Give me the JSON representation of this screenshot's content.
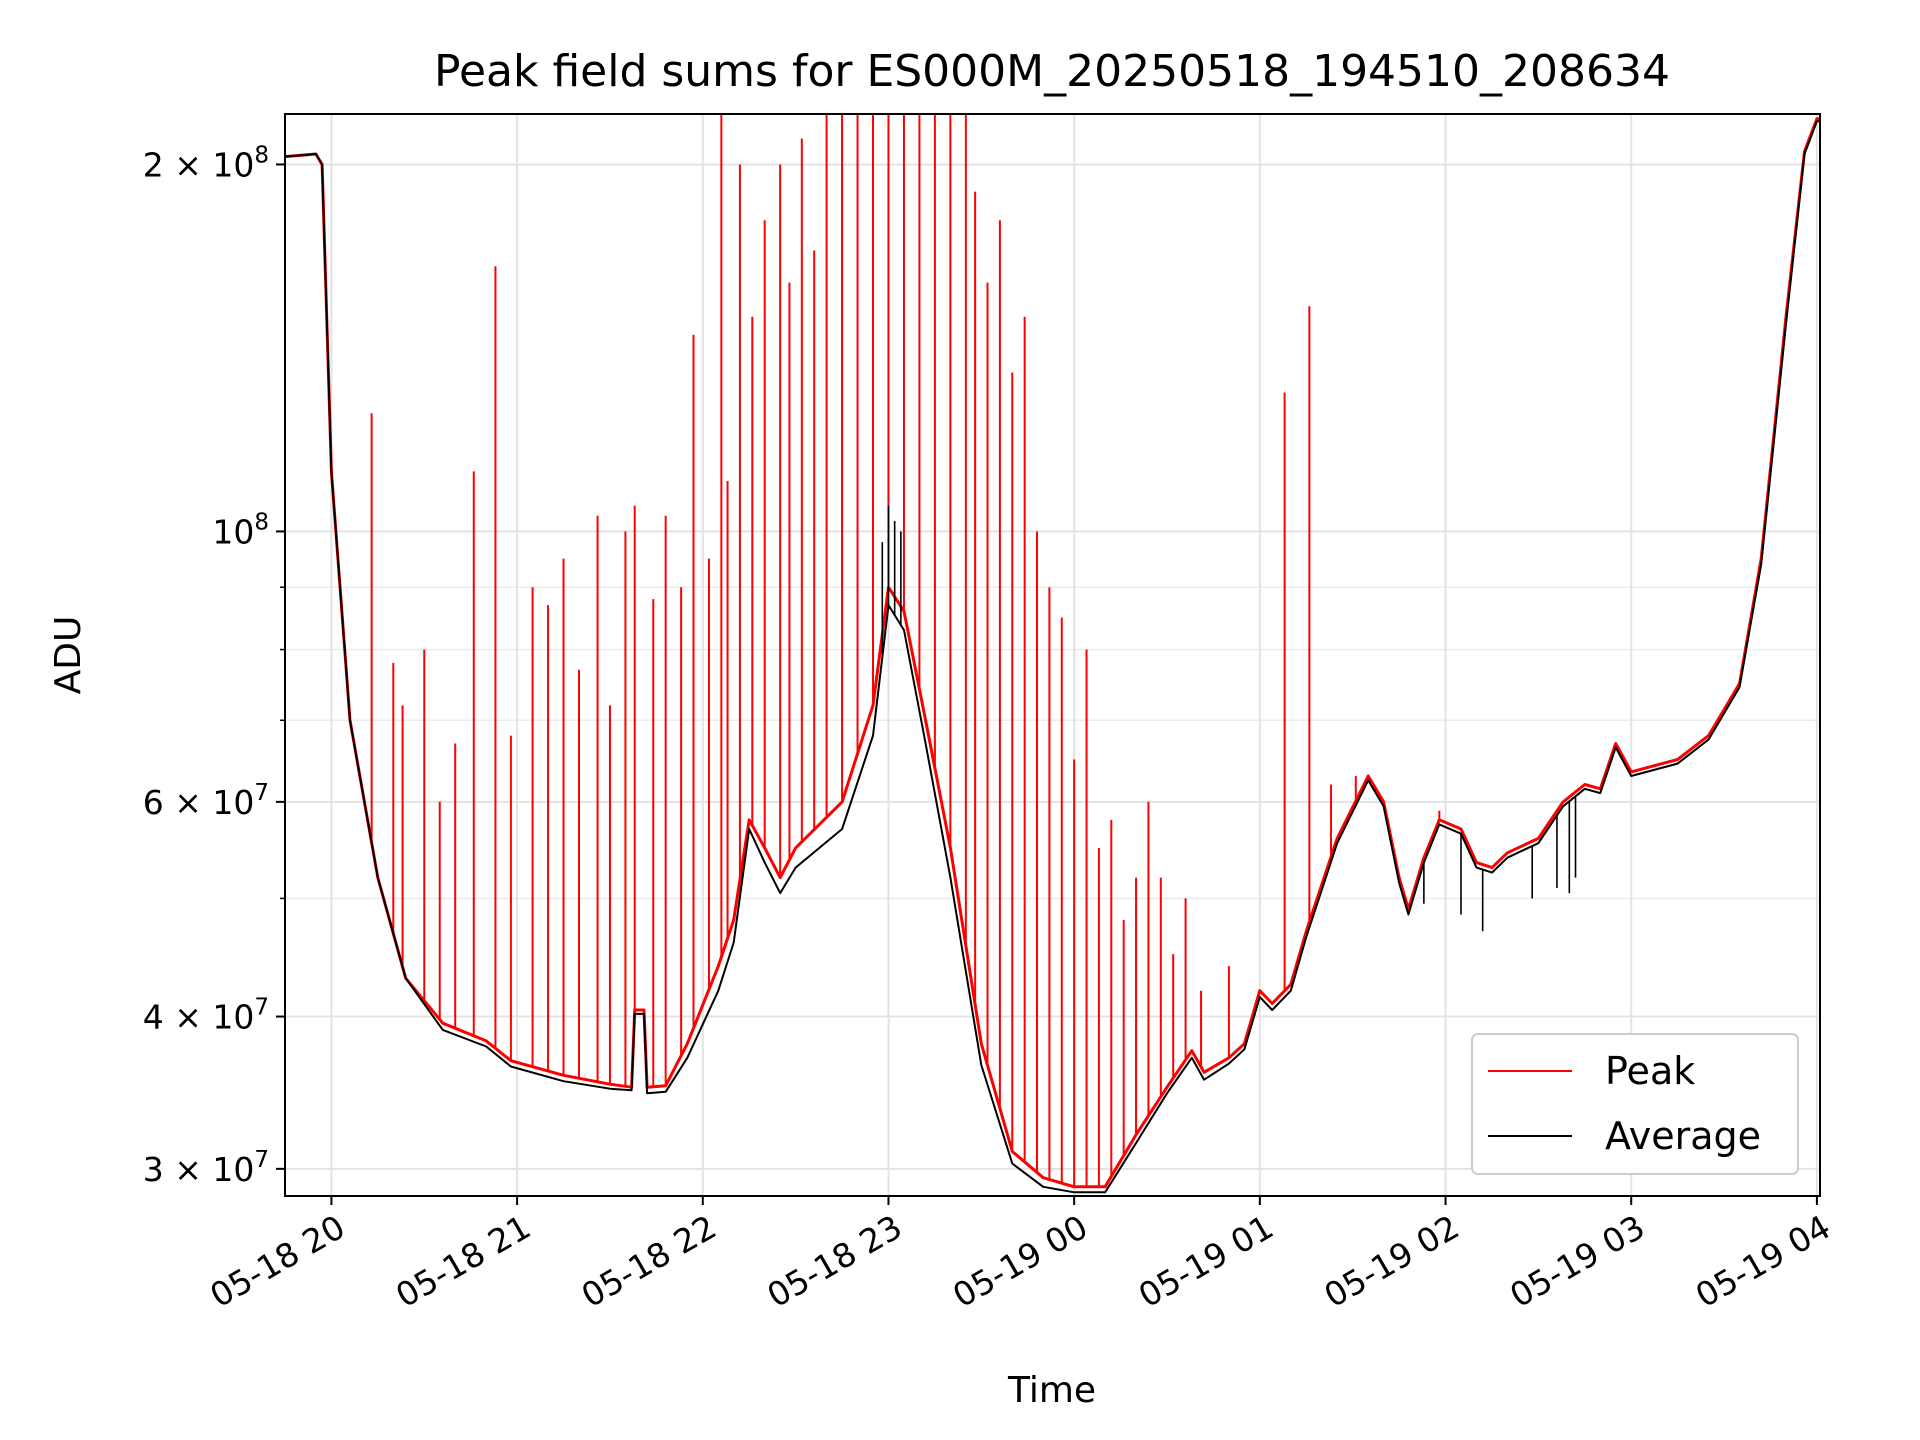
{
  "chart_data": {
    "type": "line",
    "title": "Peak field sums for ES000M_20250518_194510_208634",
    "xlabel": "Time",
    "ylabel": "ADU",
    "y_scale": "log",
    "ylim": [
      28500000,
      220000000
    ],
    "xlim": [
      "2025-05-18 19:45",
      "2025-05-19 04:01"
    ],
    "grid": true,
    "legend_position": "lower-right",
    "x_ticks": [
      {
        "t": "2025-05-18 20:00",
        "label": "05-18 20"
      },
      {
        "t": "2025-05-18 21:00",
        "label": "05-18 21"
      },
      {
        "t": "2025-05-18 22:00",
        "label": "05-18 22"
      },
      {
        "t": "2025-05-18 23:00",
        "label": "05-18 23"
      },
      {
        "t": "2025-05-19 00:00",
        "label": "05-19 00"
      },
      {
        "t": "2025-05-19 01:00",
        "label": "05-19 01"
      },
      {
        "t": "2025-05-19 02:00",
        "label": "05-19 02"
      },
      {
        "t": "2025-05-19 03:00",
        "label": "05-19 03"
      },
      {
        "t": "2025-05-19 04:00",
        "label": "05-19 04"
      }
    ],
    "y_ticks": [
      {
        "v": 30000000,
        "mantissa": "3",
        "exp": "7"
      },
      {
        "v": 40000000,
        "mantissa": "4",
        "exp": "7"
      },
      {
        "v": 60000000,
        "mantissa": "6",
        "exp": "7"
      },
      {
        "v": 100000000,
        "mantissa": "",
        "exp": "8"
      },
      {
        "v": 200000000,
        "mantissa": "2",
        "exp": "8"
      }
    ],
    "y_minor_ticks": [
      50000000,
      70000000,
      80000000,
      90000000
    ],
    "series": [
      {
        "name": "Peak",
        "color": "#ff0000",
        "baseline": [
          [
            "2025-05-18 19:45",
            203000000
          ],
          [
            "2025-05-18 19:55",
            204000000
          ],
          [
            "2025-05-18 19:57",
            200000000
          ],
          [
            "2025-05-18 20:00",
            112000000
          ],
          [
            "2025-05-18 20:06",
            70000000
          ],
          [
            "2025-05-18 20:15",
            52000000
          ],
          [
            "2025-05-18 20:24",
            43000000
          ],
          [
            "2025-05-18 20:36",
            39500000
          ],
          [
            "2025-05-18 20:50",
            38200000
          ],
          [
            "2025-05-18 20:58",
            36800000
          ],
          [
            "2025-05-18 21:15",
            35800000
          ],
          [
            "2025-05-18 21:30",
            35200000
          ],
          [
            "2025-05-18 21:37",
            35000000
          ],
          [
            "2025-05-18 21:38",
            40500000
          ],
          [
            "2025-05-18 21:41",
            40500000
          ],
          [
            "2025-05-18 21:42",
            35000000
          ],
          [
            "2025-05-18 21:48",
            35100000
          ],
          [
            "2025-05-18 21:55",
            38000000
          ],
          [
            "2025-05-18 22:05",
            44000000
          ],
          [
            "2025-05-18 22:10",
            48000000
          ],
          [
            "2025-05-18 22:15",
            58000000
          ],
          [
            "2025-05-18 22:20",
            55000000
          ],
          [
            "2025-05-18 22:25",
            52000000
          ],
          [
            "2025-05-18 22:30",
            55000000
          ],
          [
            "2025-05-18 22:45",
            60000000
          ],
          [
            "2025-05-18 22:55",
            72000000
          ],
          [
            "2025-05-18 23:00",
            90000000
          ],
          [
            "2025-05-18 23:05",
            86000000
          ],
          [
            "2025-05-18 23:12",
            70000000
          ],
          [
            "2025-05-18 23:20",
            55000000
          ],
          [
            "2025-05-18 23:30",
            38000000
          ],
          [
            "2025-05-18 23:40",
            31000000
          ],
          [
            "2025-05-18 23:50",
            29500000
          ],
          [
            "2025-05-19 00:00",
            29000000
          ],
          [
            "2025-05-19 00:10",
            29000000
          ],
          [
            "2025-05-19 00:20",
            32000000
          ],
          [
            "2025-05-19 00:30",
            35000000
          ],
          [
            "2025-05-19 00:38",
            37500000
          ],
          [
            "2025-05-19 00:42",
            36000000
          ],
          [
            "2025-05-19 00:50",
            37000000
          ],
          [
            "2025-05-19 00:55",
            38000000
          ],
          [
            "2025-05-19 01:00",
            42000000
          ],
          [
            "2025-05-19 01:04",
            41000000
          ],
          [
            "2025-05-19 01:10",
            42500000
          ],
          [
            "2025-05-19 01:15",
            47000000
          ],
          [
            "2025-05-19 01:25",
            56000000
          ],
          [
            "2025-05-19 01:35",
            63000000
          ],
          [
            "2025-05-19 01:40",
            60000000
          ],
          [
            "2025-05-19 01:45",
            52000000
          ],
          [
            "2025-05-19 01:48",
            49000000
          ],
          [
            "2025-05-19 01:53",
            54000000
          ],
          [
            "2025-05-19 01:58",
            58000000
          ],
          [
            "2025-05-19 02:05",
            57000000
          ],
          [
            "2025-05-19 02:10",
            53500000
          ],
          [
            "2025-05-19 02:15",
            53000000
          ],
          [
            "2025-05-19 02:20",
            54500000
          ],
          [
            "2025-05-19 02:30",
            56000000
          ],
          [
            "2025-05-19 02:38",
            60000000
          ],
          [
            "2025-05-19 02:45",
            62000000
          ],
          [
            "2025-05-19 02:50",
            61500000
          ],
          [
            "2025-05-19 02:55",
            67000000
          ],
          [
            "2025-05-19 03:00",
            63500000
          ],
          [
            "2025-05-19 03:15",
            65000000
          ],
          [
            "2025-05-19 03:25",
            68000000
          ],
          [
            "2025-05-19 03:35",
            75000000
          ],
          [
            "2025-05-19 03:42",
            95000000
          ],
          [
            "2025-05-19 03:50",
            150000000
          ],
          [
            "2025-05-19 03:56",
            205000000
          ],
          [
            "2025-05-19 04:00",
            218000000
          ],
          [
            "2025-05-19 04:01",
            218000000
          ]
        ],
        "spikes": [
          [
            "2025-05-18 20:13",
            125000000
          ],
          [
            "2025-05-18 20:20",
            78000000
          ],
          [
            "2025-05-18 20:23",
            72000000
          ],
          [
            "2025-05-18 20:30",
            80000000
          ],
          [
            "2025-05-18 20:35",
            60000000
          ],
          [
            "2025-05-18 20:40",
            67000000
          ],
          [
            "2025-05-18 20:46",
            112000000
          ],
          [
            "2025-05-18 20:53",
            165000000
          ],
          [
            "2025-05-18 20:58",
            68000000
          ],
          [
            "2025-05-18 21:05",
            90000000
          ],
          [
            "2025-05-18 21:10",
            87000000
          ],
          [
            "2025-05-18 21:15",
            95000000
          ],
          [
            "2025-05-18 21:20",
            77000000
          ],
          [
            "2025-05-18 21:26",
            103000000
          ],
          [
            "2025-05-18 21:30",
            72000000
          ],
          [
            "2025-05-18 21:35",
            100000000
          ],
          [
            "2025-05-18 21:38",
            105000000
          ],
          [
            "2025-05-18 21:44",
            88000000
          ],
          [
            "2025-05-18 21:48",
            103000000
          ],
          [
            "2025-05-18 21:53",
            90000000
          ],
          [
            "2025-05-18 21:57",
            145000000
          ],
          [
            "2025-05-18 22:02",
            95000000
          ],
          [
            "2025-05-18 22:06",
            220000000
          ],
          [
            "2025-05-18 22:08",
            110000000
          ],
          [
            "2025-05-18 22:12",
            200000000
          ],
          [
            "2025-05-18 22:16",
            150000000
          ],
          [
            "2025-05-18 22:20",
            180000000
          ],
          [
            "2025-05-18 22:25",
            200000000
          ],
          [
            "2025-05-18 22:28",
            160000000
          ],
          [
            "2025-05-18 22:32",
            210000000
          ],
          [
            "2025-05-18 22:36",
            170000000
          ],
          [
            "2025-05-18 22:40",
            220000000
          ],
          [
            "2025-05-18 22:45",
            220000000
          ],
          [
            "2025-05-18 22:50",
            220000000
          ],
          [
            "2025-05-18 22:55",
            220000000
          ],
          [
            "2025-05-18 23:00",
            220000000
          ],
          [
            "2025-05-18 23:05",
            220000000
          ],
          [
            "2025-05-18 23:10",
            220000000
          ],
          [
            "2025-05-18 23:15",
            220000000
          ],
          [
            "2025-05-18 23:20",
            220000000
          ],
          [
            "2025-05-18 23:25",
            220000000
          ],
          [
            "2025-05-18 23:28",
            190000000
          ],
          [
            "2025-05-18 23:32",
            160000000
          ],
          [
            "2025-05-18 23:36",
            180000000
          ],
          [
            "2025-05-18 23:40",
            135000000
          ],
          [
            "2025-05-18 23:44",
            150000000
          ],
          [
            "2025-05-18 23:48",
            100000000
          ],
          [
            "2025-05-18 23:52",
            90000000
          ],
          [
            "2025-05-18 23:56",
            85000000
          ],
          [
            "2025-05-19 00:00",
            65000000
          ],
          [
            "2025-05-19 00:04",
            80000000
          ],
          [
            "2025-05-19 00:08",
            55000000
          ],
          [
            "2025-05-19 00:12",
            58000000
          ],
          [
            "2025-05-19 00:16",
            48000000
          ],
          [
            "2025-05-19 00:20",
            52000000
          ],
          [
            "2025-05-19 00:24",
            60000000
          ],
          [
            "2025-05-19 00:28",
            52000000
          ],
          [
            "2025-05-19 00:32",
            45000000
          ],
          [
            "2025-05-19 00:36",
            50000000
          ],
          [
            "2025-05-19 00:41",
            42000000
          ],
          [
            "2025-05-19 00:50",
            44000000
          ],
          [
            "2025-05-19 01:08",
            130000000
          ],
          [
            "2025-05-19 01:16",
            153000000
          ],
          [
            "2025-05-19 01:23",
            62000000
          ],
          [
            "2025-05-19 01:31",
            63000000
          ],
          [
            "2025-05-19 01:58",
            59000000
          ]
        ]
      },
      {
        "name": "Average",
        "color": "#000000",
        "baseline": [
          [
            "2025-05-18 19:45",
            203000000
          ],
          [
            "2025-05-18 19:55",
            204000000
          ],
          [
            "2025-05-18 19:57",
            200000000
          ],
          [
            "2025-05-18 20:00",
            112000000
          ],
          [
            "2025-05-18 20:06",
            70000000
          ],
          [
            "2025-05-18 20:15",
            52000000
          ],
          [
            "2025-05-18 20:24",
            43000000
          ],
          [
            "2025-05-18 20:36",
            39000000
          ],
          [
            "2025-05-18 20:50",
            37800000
          ],
          [
            "2025-05-18 20:58",
            36400000
          ],
          [
            "2025-05-18 21:15",
            35400000
          ],
          [
            "2025-05-18 21:30",
            34900000
          ],
          [
            "2025-05-18 21:37",
            34800000
          ],
          [
            "2025-05-18 21:38",
            40200000
          ],
          [
            "2025-05-18 21:41",
            40200000
          ],
          [
            "2025-05-18 21:42",
            34600000
          ],
          [
            "2025-05-18 21:48",
            34700000
          ],
          [
            "2025-05-18 21:55",
            37000000
          ],
          [
            "2025-05-18 22:05",
            42000000
          ],
          [
            "2025-05-18 22:10",
            46000000
          ],
          [
            "2025-05-18 22:15",
            57000000
          ],
          [
            "2025-05-18 22:20",
            53500000
          ],
          [
            "2025-05-18 22:25",
            50500000
          ],
          [
            "2025-05-18 22:30",
            53000000
          ],
          [
            "2025-05-18 22:45",
            57000000
          ],
          [
            "2025-05-18 22:55",
            68000000
          ],
          [
            "2025-05-18 23:00",
            87000000
          ],
          [
            "2025-05-18 23:05",
            83000000
          ],
          [
            "2025-05-18 23:12",
            67000000
          ],
          [
            "2025-05-18 23:20",
            52000000
          ],
          [
            "2025-05-18 23:30",
            36500000
          ],
          [
            "2025-05-18 23:40",
            30300000
          ],
          [
            "2025-05-18 23:50",
            29000000
          ],
          [
            "2025-05-19 00:00",
            28700000
          ],
          [
            "2025-05-19 00:10",
            28700000
          ],
          [
            "2025-05-19 00:20",
            31500000
          ],
          [
            "2025-05-19 00:30",
            34600000
          ],
          [
            "2025-05-19 00:38",
            37000000
          ],
          [
            "2025-05-19 00:42",
            35500000
          ],
          [
            "2025-05-19 00:50",
            36600000
          ],
          [
            "2025-05-19 00:55",
            37600000
          ],
          [
            "2025-05-19 01:00",
            41500000
          ],
          [
            "2025-05-19 01:04",
            40500000
          ],
          [
            "2025-05-19 01:10",
            42000000
          ],
          [
            "2025-05-19 01:15",
            46500000
          ],
          [
            "2025-05-19 01:25",
            55500000
          ],
          [
            "2025-05-19 01:35",
            62500000
          ],
          [
            "2025-05-19 01:40",
            59500000
          ],
          [
            "2025-05-19 01:45",
            51500000
          ],
          [
            "2025-05-19 01:48",
            48500000
          ],
          [
            "2025-05-19 01:53",
            53500000
          ],
          [
            "2025-05-19 01:58",
            57500000
          ],
          [
            "2025-05-19 02:05",
            56500000
          ],
          [
            "2025-05-19 02:10",
            53000000
          ],
          [
            "2025-05-19 02:15",
            52500000
          ],
          [
            "2025-05-19 02:20",
            54000000
          ],
          [
            "2025-05-19 02:30",
            55500000
          ],
          [
            "2025-05-19 02:38",
            59500000
          ],
          [
            "2025-05-19 02:45",
            61500000
          ],
          [
            "2025-05-19 02:50",
            61000000
          ],
          [
            "2025-05-19 02:55",
            66500000
          ],
          [
            "2025-05-19 03:00",
            63000000
          ],
          [
            "2025-05-19 03:15",
            64500000
          ],
          [
            "2025-05-19 03:25",
            67500000
          ],
          [
            "2025-05-19 03:35",
            74500000
          ],
          [
            "2025-05-19 03:42",
            94000000
          ],
          [
            "2025-05-19 03:50",
            148000000
          ],
          [
            "2025-05-19 03:56",
            204000000
          ],
          [
            "2025-05-19 04:00",
            217000000
          ],
          [
            "2025-05-19 04:01",
            217000000
          ]
        ],
        "spikes": [
          [
            "2025-05-18 23:00",
            105000000
          ],
          [
            "2025-05-18 23:02",
            102000000
          ],
          [
            "2025-05-18 22:58",
            98000000
          ],
          [
            "2025-05-18 23:04",
            100000000
          ],
          [
            "2025-05-19 01:53",
            49500000
          ],
          [
            "2025-05-19 02:05",
            48500000
          ],
          [
            "2025-05-19 02:12",
            47000000
          ],
          [
            "2025-05-19 02:28",
            50000000
          ],
          [
            "2025-05-19 02:36",
            51000000
          ],
          [
            "2025-05-19 02:40",
            50500000
          ],
          [
            "2025-05-19 02:42",
            52000000
          ]
        ]
      }
    ]
  }
}
